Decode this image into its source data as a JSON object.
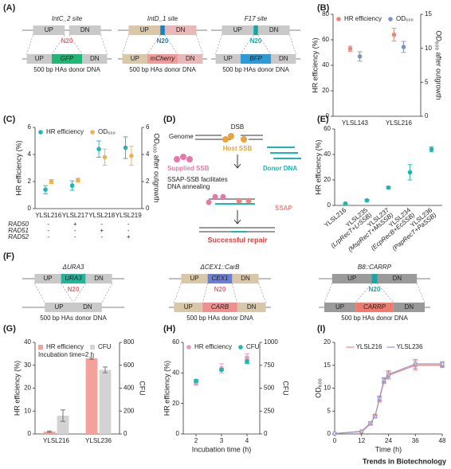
{
  "panel_labels": [
    "(A)",
    "(B)",
    "(C)",
    "(D)",
    "(E)",
    "(F)",
    "(G)",
    "(H)",
    "(I)"
  ],
  "diagram_a": {
    "constructs": [
      {
        "title": "IntC_2 site",
        "n20": "N20",
        "gene": "GFP"
      },
      {
        "title": "IntD_1 site",
        "n20": "N20",
        "gene": "mCherry"
      },
      {
        "title": "F17 site",
        "n20": "N20",
        "gene": "BFP"
      }
    ],
    "up": "UP",
    "dn": "DN",
    "donor": "500 bp HAs donor DNA"
  },
  "diagram_d": {
    "genome": "Genome",
    "dsb": "DSB",
    "host_ssb": "Host SSB",
    "supplied_ssb": "Supplied SSB",
    "donor_dna": "Donor DNA",
    "annealing": [
      "SSAP-SSB facilitates",
      "DNA annealing"
    ],
    "ssap": "SSAP",
    "repair": "Successful repair"
  },
  "diagram_f": {
    "constructs": [
      {
        "title": "ΔURA3",
        "locus": "URA3",
        "n20": "N20"
      },
      {
        "title": "ΔCEX1::CarB",
        "locus": "CEX1",
        "n20": "N20",
        "gene": "CARB"
      },
      {
        "title": "B8::CARRP",
        "n20": "N20",
        "gene": "CARRP"
      }
    ],
    "up": "UP",
    "dn": "DN",
    "donor": "500 bp HAs donor DNA"
  },
  "chart_data": [
    {
      "type": "dot",
      "categories": [
        "YLSL143",
        "YLSL216"
      ],
      "ylabel": "HR efficiency (%)",
      "y2label": "OD₆₀₀ after outgrowth",
      "ylim": [
        0,
        80
      ],
      "yticks": [
        0,
        20,
        40,
        60,
        80
      ],
      "y2lim": [
        0,
        15
      ],
      "y2ticks": [
        0,
        5,
        10,
        15
      ],
      "legend": "upper left",
      "series": [
        {
          "name": "HR efficiency",
          "color": "#e8877c",
          "values": [
            53,
            64
          ],
          "errors": [
            2,
            5
          ]
        },
        {
          "name": "OD₆₀₀",
          "color": "#7f93c4",
          "axis": "y2",
          "values": [
            8.8,
            10.2
          ],
          "errors": [
            0.7,
            0.8
          ]
        }
      ]
    },
    {
      "type": "dot",
      "categories": [
        "YLSL216",
        "YLSL217",
        "YLSL218",
        "YLSL219"
      ],
      "ylabel": "HR efficiency (%)",
      "y2label": "OD₆₀₀ after outgrowth",
      "ylim": [
        0,
        6
      ],
      "yticks": [
        0,
        2,
        4,
        6
      ],
      "y2lim": [
        0,
        6
      ],
      "y2ticks": [
        0,
        2,
        4,
        6
      ],
      "legend": "upper left",
      "series": [
        {
          "name": "HR efficiency",
          "color": "#1fb5b0",
          "values": [
            1.4,
            1.7,
            4.4,
            4.5
          ],
          "errors": [
            0.3,
            0.35,
            0.6,
            0.8
          ]
        },
        {
          "name": "OD₆₀₀",
          "color": "#f0b050",
          "axis": "y2",
          "values": [
            2.0,
            2.1,
            3.8,
            3.9
          ],
          "errors": [
            0.15,
            0.15,
            0.6,
            0.7
          ]
        }
      ],
      "genotype": {
        "rows": [
          "RAD50",
          "RAD51",
          "RAD52"
        ],
        "values": [
          [
            "-",
            "+",
            "-",
            "-"
          ],
          [
            "-",
            "-",
            "+",
            "-"
          ],
          [
            "-",
            "-",
            "-",
            "+"
          ]
        ]
      }
    },
    {
      "type": "dot",
      "categories": [
        "YLSL216",
        "YLSL235",
        "YLSL237",
        "YLSL234",
        "YLSL236"
      ],
      "category_notes": [
        null,
        "(LrpRecT+LrSSB)",
        "(MspRecT+MsSSB)",
        "(EcpRecB+EcSSB)",
        "(PapRecT+PaSSB)"
      ],
      "ylabel": "HR efficiency (%)",
      "ylim": [
        0,
        60
      ],
      "yticks": [
        0,
        20,
        40,
        60
      ],
      "color": "#1fb5b0",
      "values": [
        1.5,
        4,
        14,
        26,
        44
      ],
      "errors": [
        0.5,
        0.8,
        0.8,
        6,
        2
      ]
    },
    {
      "type": "bar",
      "categories": [
        "YLSL216",
        "YLSL236"
      ],
      "ylabel": "HR efficiency (%)",
      "y2label": "CFU",
      "ylim": [
        0,
        40
      ],
      "yticks": [
        0,
        10,
        20,
        30,
        40
      ],
      "y2lim": [
        0,
        800
      ],
      "y2ticks": [
        0,
        200,
        400,
        600,
        800
      ],
      "legend": "upper left",
      "annotation": "Incubation time=2 h",
      "series": [
        {
          "name": "HR efficiency",
          "color": "#f4a19b",
          "values": [
            1,
            33
          ],
          "errors": [
            0.3,
            0.4
          ]
        },
        {
          "name": "CFU",
          "color": "#d3d3d3",
          "axis": "y2",
          "values": [
            160,
            560
          ],
          "errors": [
            50,
            25
          ]
        }
      ]
    },
    {
      "type": "scatter",
      "x": [
        2,
        3,
        4
      ],
      "xlim": [
        1.5,
        4.5
      ],
      "xticks": [
        2,
        3,
        4
      ],
      "xlabel": "Incubation time (h)",
      "ylabel": "HR efficiency (%)",
      "y2label": "CFU",
      "ylim": [
        0,
        60
      ],
      "yticks": [
        0,
        20,
        40,
        60
      ],
      "y2lim": [
        0,
        1000
      ],
      "y2ticks": [
        0,
        250,
        500,
        750,
        1000
      ],
      "legend": "upper left",
      "series": [
        {
          "name": "HR efficiency",
          "color": "#e59bc0",
          "values": [
            33,
            43,
            50
          ],
          "errors": [
            1,
            3,
            2.5
          ]
        },
        {
          "name": "CFU",
          "color": "#1fb5b0",
          "axis": "y2",
          "values": [
            580,
            700,
            790
          ],
          "errors": [
            15,
            10,
            20
          ]
        }
      ]
    },
    {
      "type": "line",
      "x": [
        0,
        12,
        16,
        18,
        20,
        22,
        24,
        36,
        48
      ],
      "xlim": [
        0,
        48
      ],
      "xticks": [
        0,
        12,
        24,
        36,
        48
      ],
      "xlabel": "Time (h)",
      "ylabel": "OD₆₀₀",
      "ylim": [
        0,
        20
      ],
      "yticks": [
        0,
        5,
        10,
        15,
        20
      ],
      "legend": "upper center",
      "series": [
        {
          "name": "YLSL216",
          "color": "#e8877c",
          "values": [
            0.1,
            0.5,
            2.2,
            4,
            7.5,
            11.5,
            12.8,
            15,
            15
          ],
          "errors": [
            0,
            0,
            0.3,
            0.3,
            0.5,
            0.5,
            0.8,
            1,
            0.5
          ]
        },
        {
          "name": "YLSL236",
          "color": "#9d94c8",
          "values": [
            0.1,
            0.6,
            2.4,
            3.8,
            7.8,
            11.8,
            13,
            15.3,
            15.3
          ],
          "errors": [
            0,
            0,
            0.3,
            0.3,
            0.5,
            0.5,
            0.8,
            1,
            0.5
          ]
        }
      ]
    }
  ],
  "footer": "Trends in Biotechnology"
}
